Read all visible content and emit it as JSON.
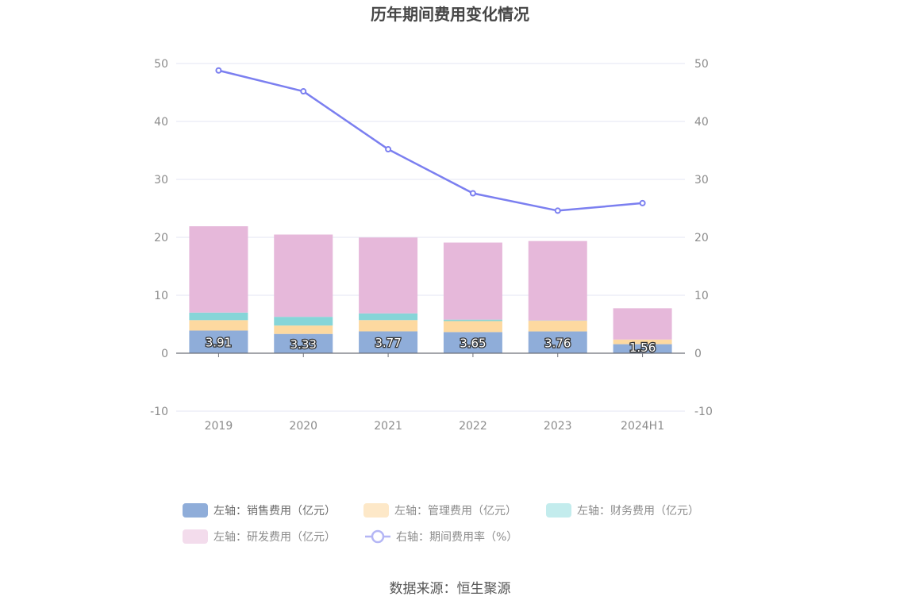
{
  "chart_data": {
    "type": "bar",
    "title": "历年期间费用变化情况",
    "categories": [
      "2019",
      "2020",
      "2021",
      "2022",
      "2023",
      "2024H1"
    ],
    "stacked": true,
    "series": [
      {
        "name": "左轴：销售费用（亿元）",
        "axis": "left",
        "type": "bar",
        "color": "#8fadd9",
        "values": [
          3.91,
          3.33,
          3.77,
          3.65,
          3.76,
          1.56
        ],
        "show_labels": true
      },
      {
        "name": "左轴：管理费用（亿元）",
        "axis": "left",
        "type": "bar",
        "color": "#fdd9a0",
        "values": [
          1.8,
          1.45,
          1.95,
          1.9,
          1.85,
          0.8
        ],
        "legend_color": "#fde8c8"
      },
      {
        "name": "左轴：财务费用（亿元）",
        "axis": "left",
        "type": "bar",
        "color": "#86d5d8",
        "values": [
          1.3,
          1.5,
          1.15,
          0.25,
          0.05,
          0.0
        ],
        "legend_color": "#c3eced"
      },
      {
        "name": "左轴：研发费用（亿元）",
        "axis": "left",
        "type": "bar",
        "color": "#e6b8da",
        "values": [
          14.9,
          14.2,
          13.1,
          13.3,
          13.7,
          5.4
        ],
        "legend_color": "#f3dcec"
      },
      {
        "name": "右轴：期间费用率（%）",
        "axis": "right",
        "type": "line",
        "color": "#7b7ff0",
        "values": [
          48.8,
          45.2,
          35.2,
          27.6,
          24.6,
          25.9
        ]
      }
    ],
    "left_axis": {
      "min": -10,
      "max": 50,
      "ticks": [
        -10,
        0,
        10,
        20,
        30,
        40,
        50
      ]
    },
    "right_axis": {
      "min": -10,
      "max": 50,
      "ticks": [
        -10,
        0,
        10,
        20,
        30,
        40,
        50
      ]
    },
    "legend_position": "bottom-center",
    "source": "数据来源：恒生聚源"
  }
}
